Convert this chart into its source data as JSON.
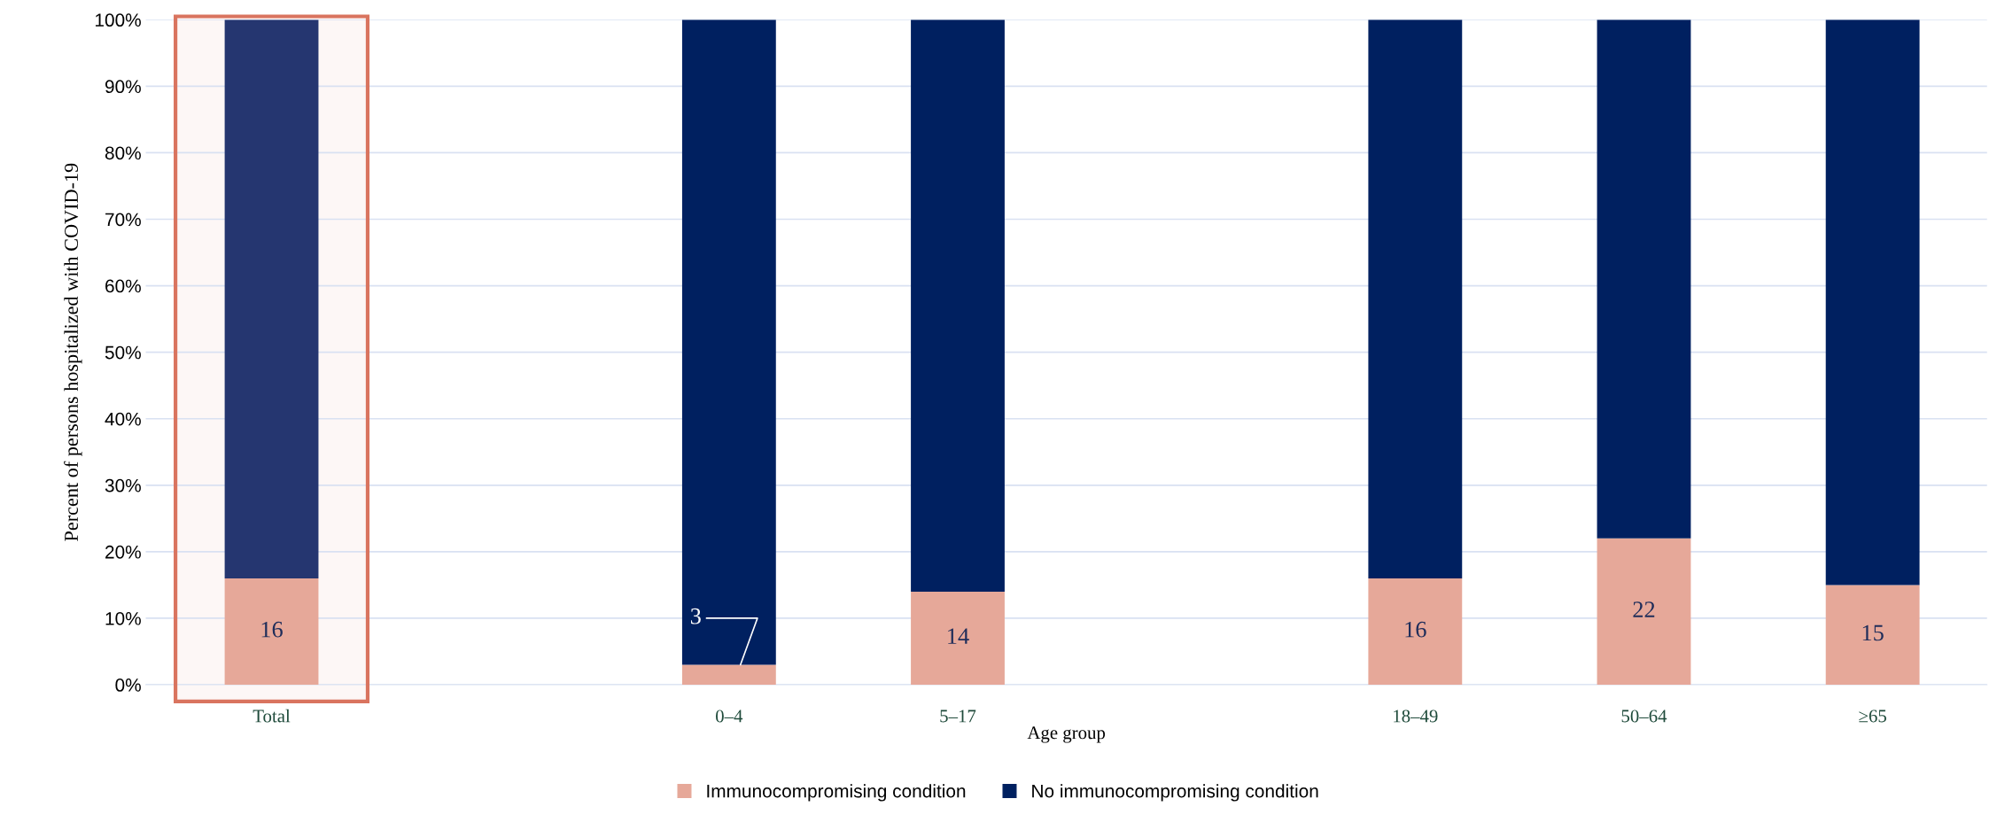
{
  "chart_data": {
    "type": "bar",
    "stacked": true,
    "xlabel": "Age group",
    "ylabel": "Percent of persons hospitalized with COVID-19",
    "categories": [
      "Total",
      null,
      "0–4",
      "5–17",
      null,
      "18–49",
      "50–64",
      "≥65"
    ],
    "series": [
      {
        "name": "Immunocompromising condition",
        "color": "#e6a899",
        "values": [
          16,
          null,
          3,
          14,
          null,
          16,
          22,
          15
        ],
        "value_labels": [
          "16",
          null,
          "3",
          "14",
          null,
          "16",
          "22",
          "15"
        ]
      },
      {
        "name": "No immunocompromising condition",
        "color": "#002060",
        "colors": [
          "#253670",
          "#002060",
          "#002060",
          "#002060",
          "#002060",
          "#002060",
          "#002060",
          "#002060"
        ],
        "values": [
          84,
          null,
          97,
          86,
          null,
          84,
          78,
          85
        ]
      }
    ],
    "ylim": [
      0,
      100
    ],
    "yticks": [
      {
        "value": 0,
        "label": "0%"
      },
      {
        "value": 10,
        "label": "10%"
      },
      {
        "value": 20,
        "label": "20%"
      },
      {
        "value": 30,
        "label": "30%"
      },
      {
        "value": 40,
        "label": "40%"
      },
      {
        "value": 50,
        "label": "50%"
      },
      {
        "value": 60,
        "label": "60%"
      },
      {
        "value": 70,
        "label": "70%"
      },
      {
        "value": 80,
        "label": "80%"
      },
      {
        "value": 90,
        "label": "90%"
      },
      {
        "value": 100,
        "label": "100%"
      }
    ],
    "grid": "y",
    "legend": "bottom",
    "bands": [
      {
        "axis": "x",
        "from": "Total",
        "to": "Total",
        "color": "#d9745f"
      }
    ]
  }
}
